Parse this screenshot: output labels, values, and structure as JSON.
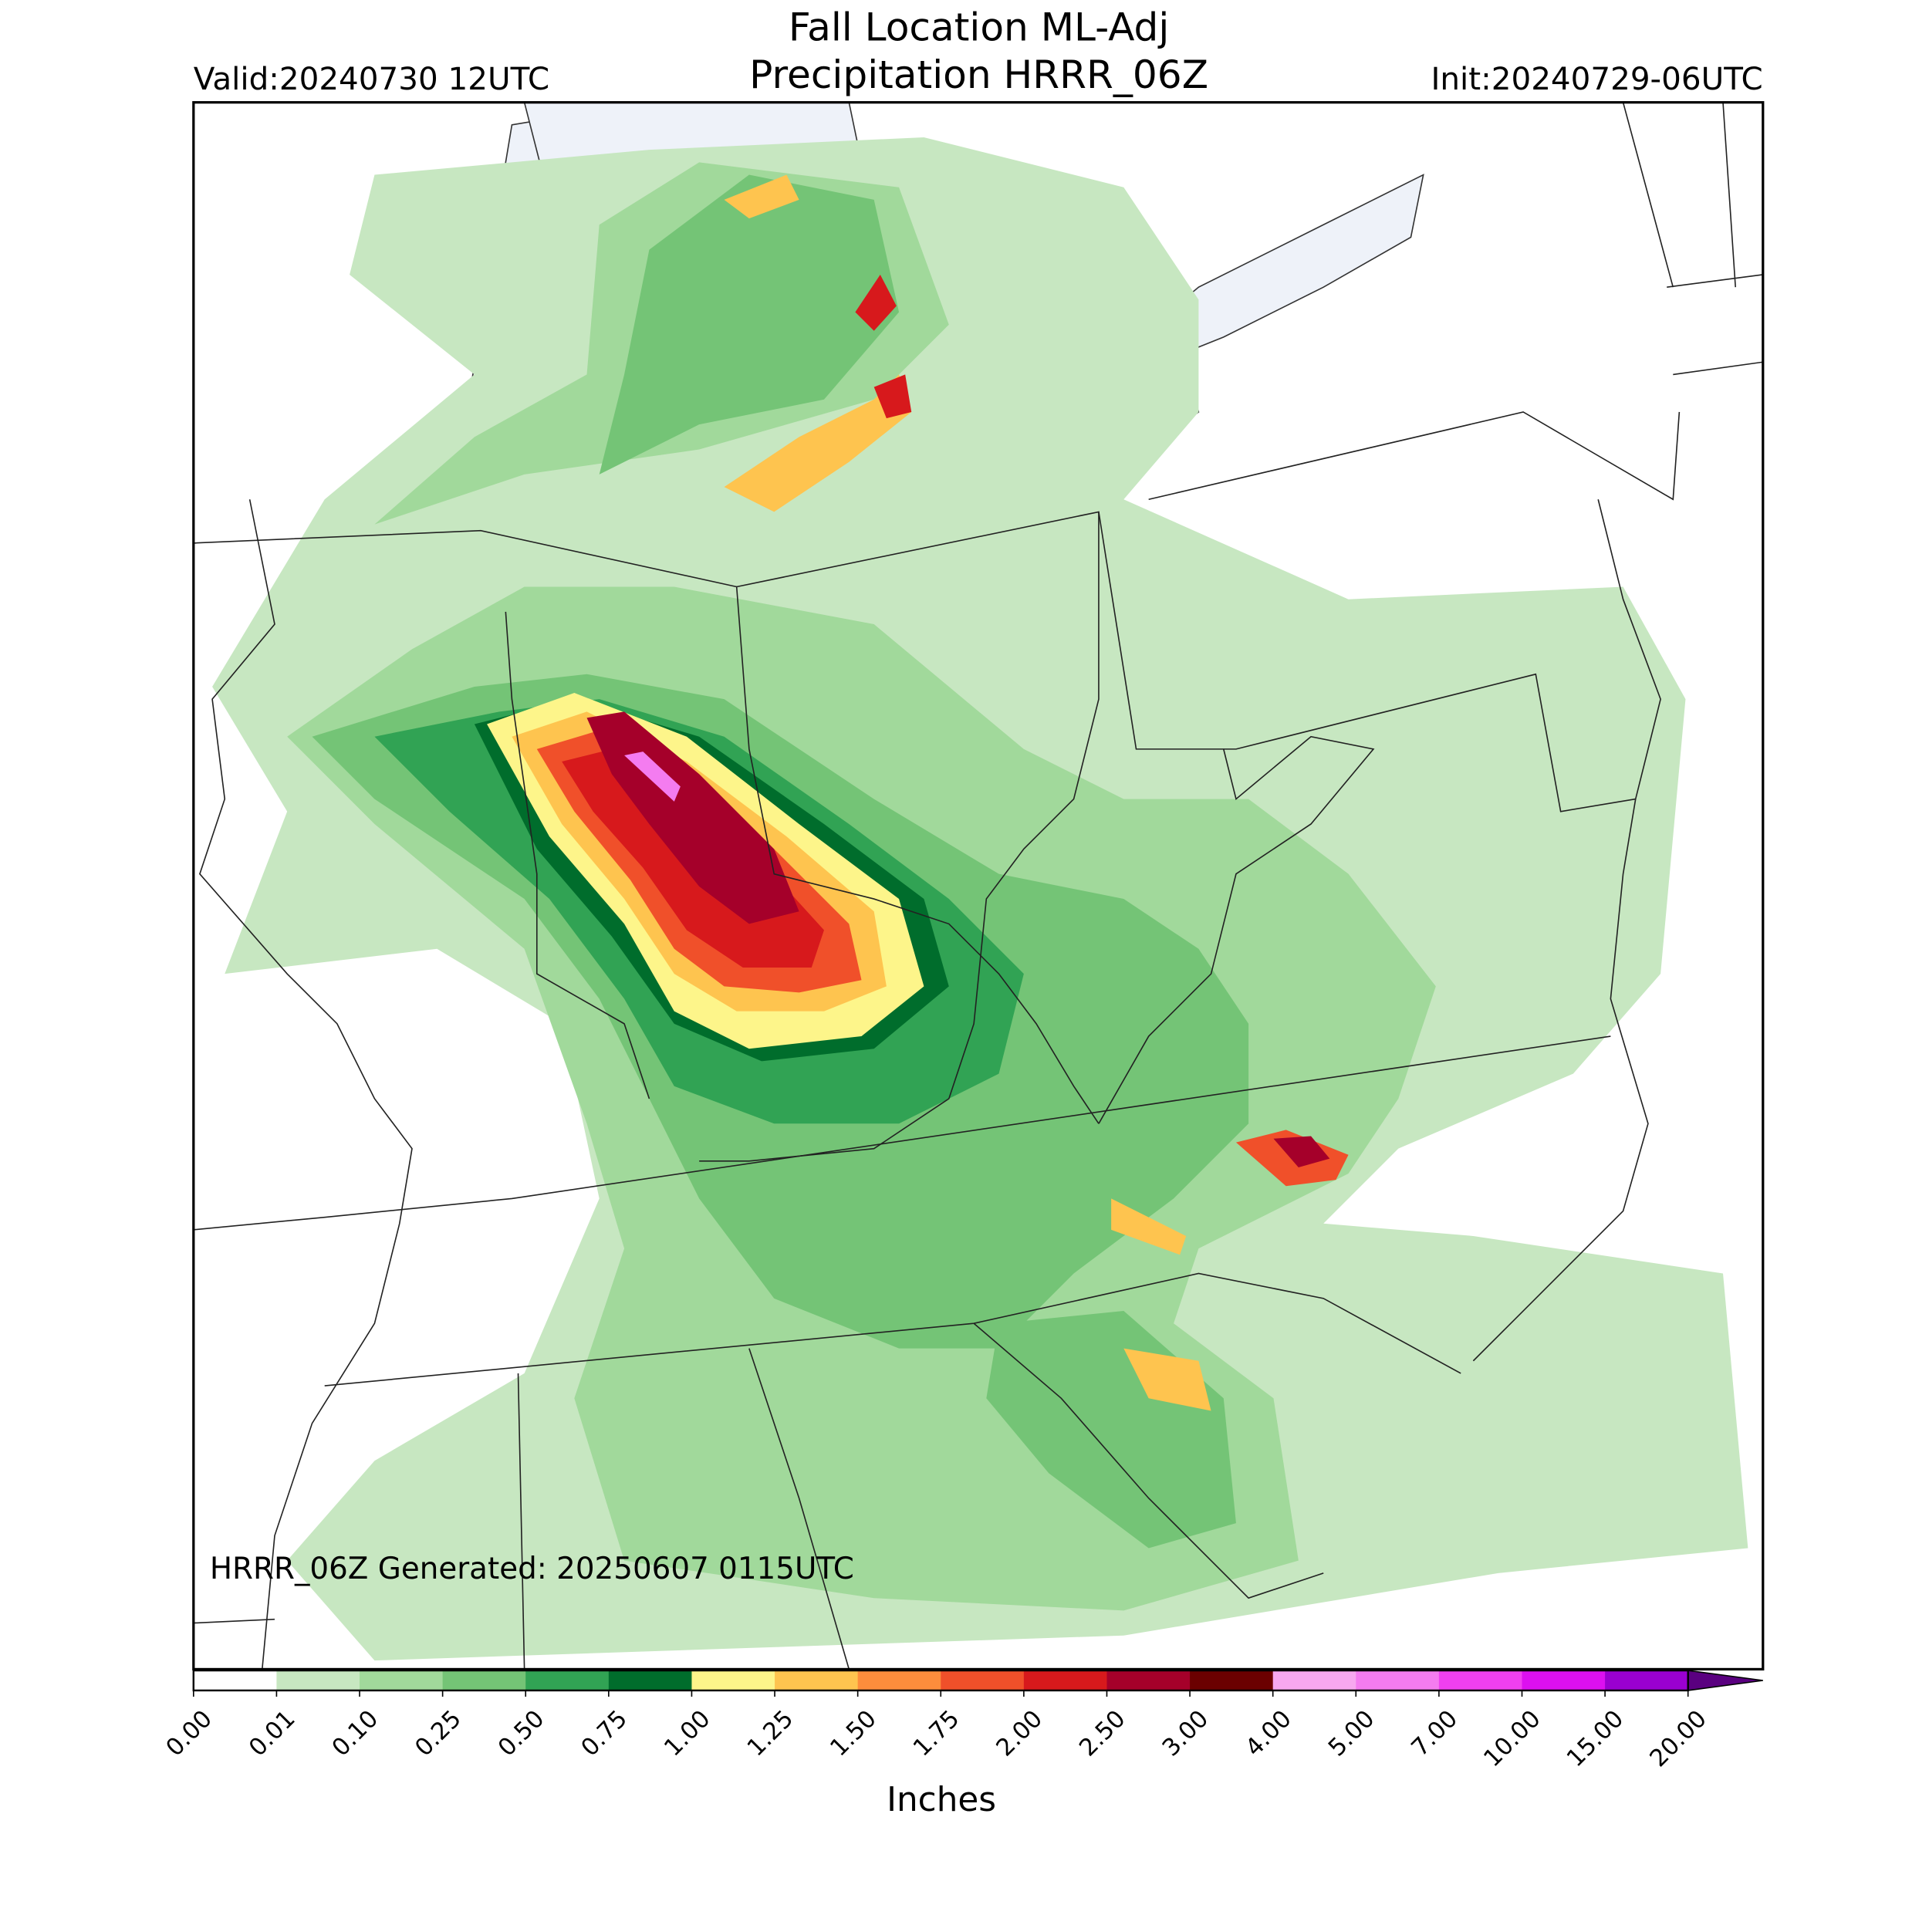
{
  "header": {
    "title_lines": [
      "Fall Location ML-Adj",
      "Precipitation HRRR_06Z"
    ],
    "valid": "Valid:20240730 12UTC",
    "init": "Init:20240729-06UTC"
  },
  "footer": {
    "generated": "HRRR_06Z Generated: 20250607 0115UTC"
  },
  "colorbar": {
    "label": "Inches",
    "ticks": [
      {
        "value": 0,
        "label": "0.00"
      },
      {
        "value": 0.01,
        "label": "0.01"
      },
      {
        "value": 0.1,
        "label": "0.10"
      },
      {
        "value": 0.25,
        "label": "0.25"
      },
      {
        "value": 0.5,
        "label": "0.50"
      },
      {
        "value": 0.75,
        "label": "0.75"
      },
      {
        "value": 1,
        "label": "1.00"
      },
      {
        "value": 1.25,
        "label": "1.25"
      },
      {
        "value": 1.5,
        "label": "1.50"
      },
      {
        "value": 1.75,
        "label": "1.75"
      },
      {
        "value": 2,
        "label": "2.00"
      },
      {
        "value": 2.5,
        "label": "2.50"
      },
      {
        "value": 3,
        "label": "3.00"
      },
      {
        "value": 4,
        "label": "4.00"
      },
      {
        "value": 5,
        "label": "5.00"
      },
      {
        "value": 7,
        "label": "7.00"
      },
      {
        "value": 10,
        "label": "10.00"
      },
      {
        "value": 15,
        "label": "15.00"
      },
      {
        "value": 20,
        "label": "20.00"
      }
    ],
    "colors": [
      "#ffffff",
      "#c7e7c1",
      "#a1d99b",
      "#74c476",
      "#31a354",
      "#006d2c",
      "#fdf58a",
      "#fec44f",
      "#fd8d3c",
      "#f0502a",
      "#d7191c",
      "#a5002a",
      "#6b0000",
      "#f7a8f0",
      "#f47cf0",
      "#f040f0",
      "#dc10f0",
      "#9a00d0",
      "#5a0080"
    ]
  }
}
